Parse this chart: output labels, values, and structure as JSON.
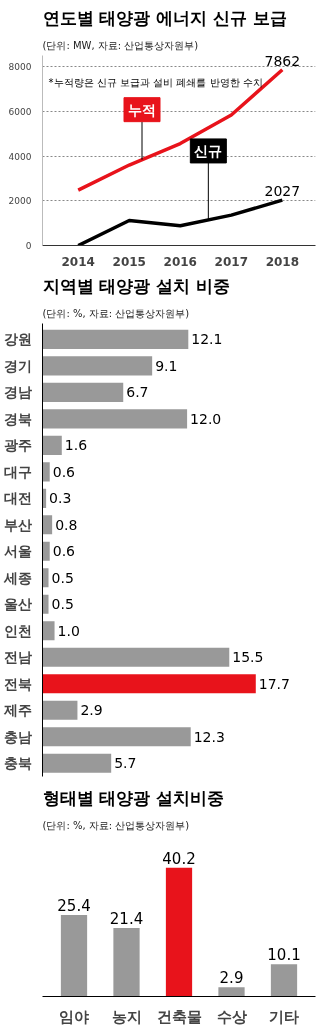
{
  "chart_data": [
    {
      "type": "line",
      "title": "연도별 태양광 에너지 신규 보급",
      "subtitle": "(단위: MW, 자료: 산업통상자원부)",
      "x": [
        2014,
        2015,
        2016,
        2017,
        2018
      ],
      "xlim": [
        2013.3,
        2018.65
      ],
      "ylim": [
        0,
        8500
      ],
      "xticks": [
        2014,
        2015,
        2016,
        2017,
        2018
      ],
      "yticks": [
        0,
        2000,
        4000,
        6000,
        8000
      ],
      "grid": "y",
      "annotations": [
        "*누적량은 신규 보급과 설비 폐쇄를 반영한 수치"
      ],
      "series": [
        {
          "name": "누적",
          "color": "#e8131b",
          "values": [
            2480,
            3600,
            4560,
            5840,
            7862
          ],
          "value_labels": [
            null,
            null,
            null,
            null,
            "7862"
          ]
        },
        {
          "name": "신규",
          "color": "#000000",
          "values": [
            0,
            1120,
            880,
            1360,
            2027
          ],
          "value_labels": [
            null,
            null,
            null,
            null,
            "2027"
          ]
        }
      ]
    },
    {
      "type": "bar",
      "orientation": "horizontal",
      "title": "지역별 태양광 설치 비중",
      "subtitle": "(단위: %, 자료: 산업통상자원부)",
      "categories": [
        "강원",
        "경기",
        "경남",
        "경북",
        "광주",
        "대구",
        "대전",
        "부산",
        "서울",
        "세종",
        "울산",
        "인천",
        "전남",
        "전북",
        "제주",
        "충남",
        "충북"
      ],
      "values": [
        12.1,
        9.1,
        6.7,
        12.0,
        1.6,
        0.6,
        0.3,
        0.8,
        0.6,
        0.5,
        0.5,
        1.0,
        15.5,
        17.7,
        2.9,
        12.3,
        5.7
      ],
      "colors": [
        "#999999",
        "#999999",
        "#999999",
        "#999999",
        "#999999",
        "#999999",
        "#999999",
        "#999999",
        "#999999",
        "#999999",
        "#999999",
        "#999999",
        "#999999",
        "#e8131b",
        "#999999",
        "#999999",
        "#999999"
      ],
      "value_labels": [
        "12.1",
        "9.1",
        "6.7",
        "12.0",
        "1.6",
        "0.6",
        "0.3",
        "0.8",
        "0.6",
        "0.5",
        "0.5",
        "1.0",
        "15.5",
        "17.7",
        "2.9",
        "12.3",
        "5.7"
      ],
      "tick_labels": "y"
    },
    {
      "type": "bar",
      "title": "형태별 태양광 설치비중",
      "subtitle": "(단위: %, 자료: 산업통상자원부)",
      "categories": [
        "임야",
        "농지",
        "건축물",
        "수상",
        "기타"
      ],
      "values": [
        25.4,
        21.4,
        40.2,
        2.9,
        10.1
      ],
      "colors": [
        "#999999",
        "#999999",
        "#e8131b",
        "#999999",
        "#999999"
      ],
      "value_labels": [
        "25.4",
        "21.4",
        "40.2",
        "2.9",
        "10.1"
      ],
      "tick_labels": "x"
    }
  ]
}
